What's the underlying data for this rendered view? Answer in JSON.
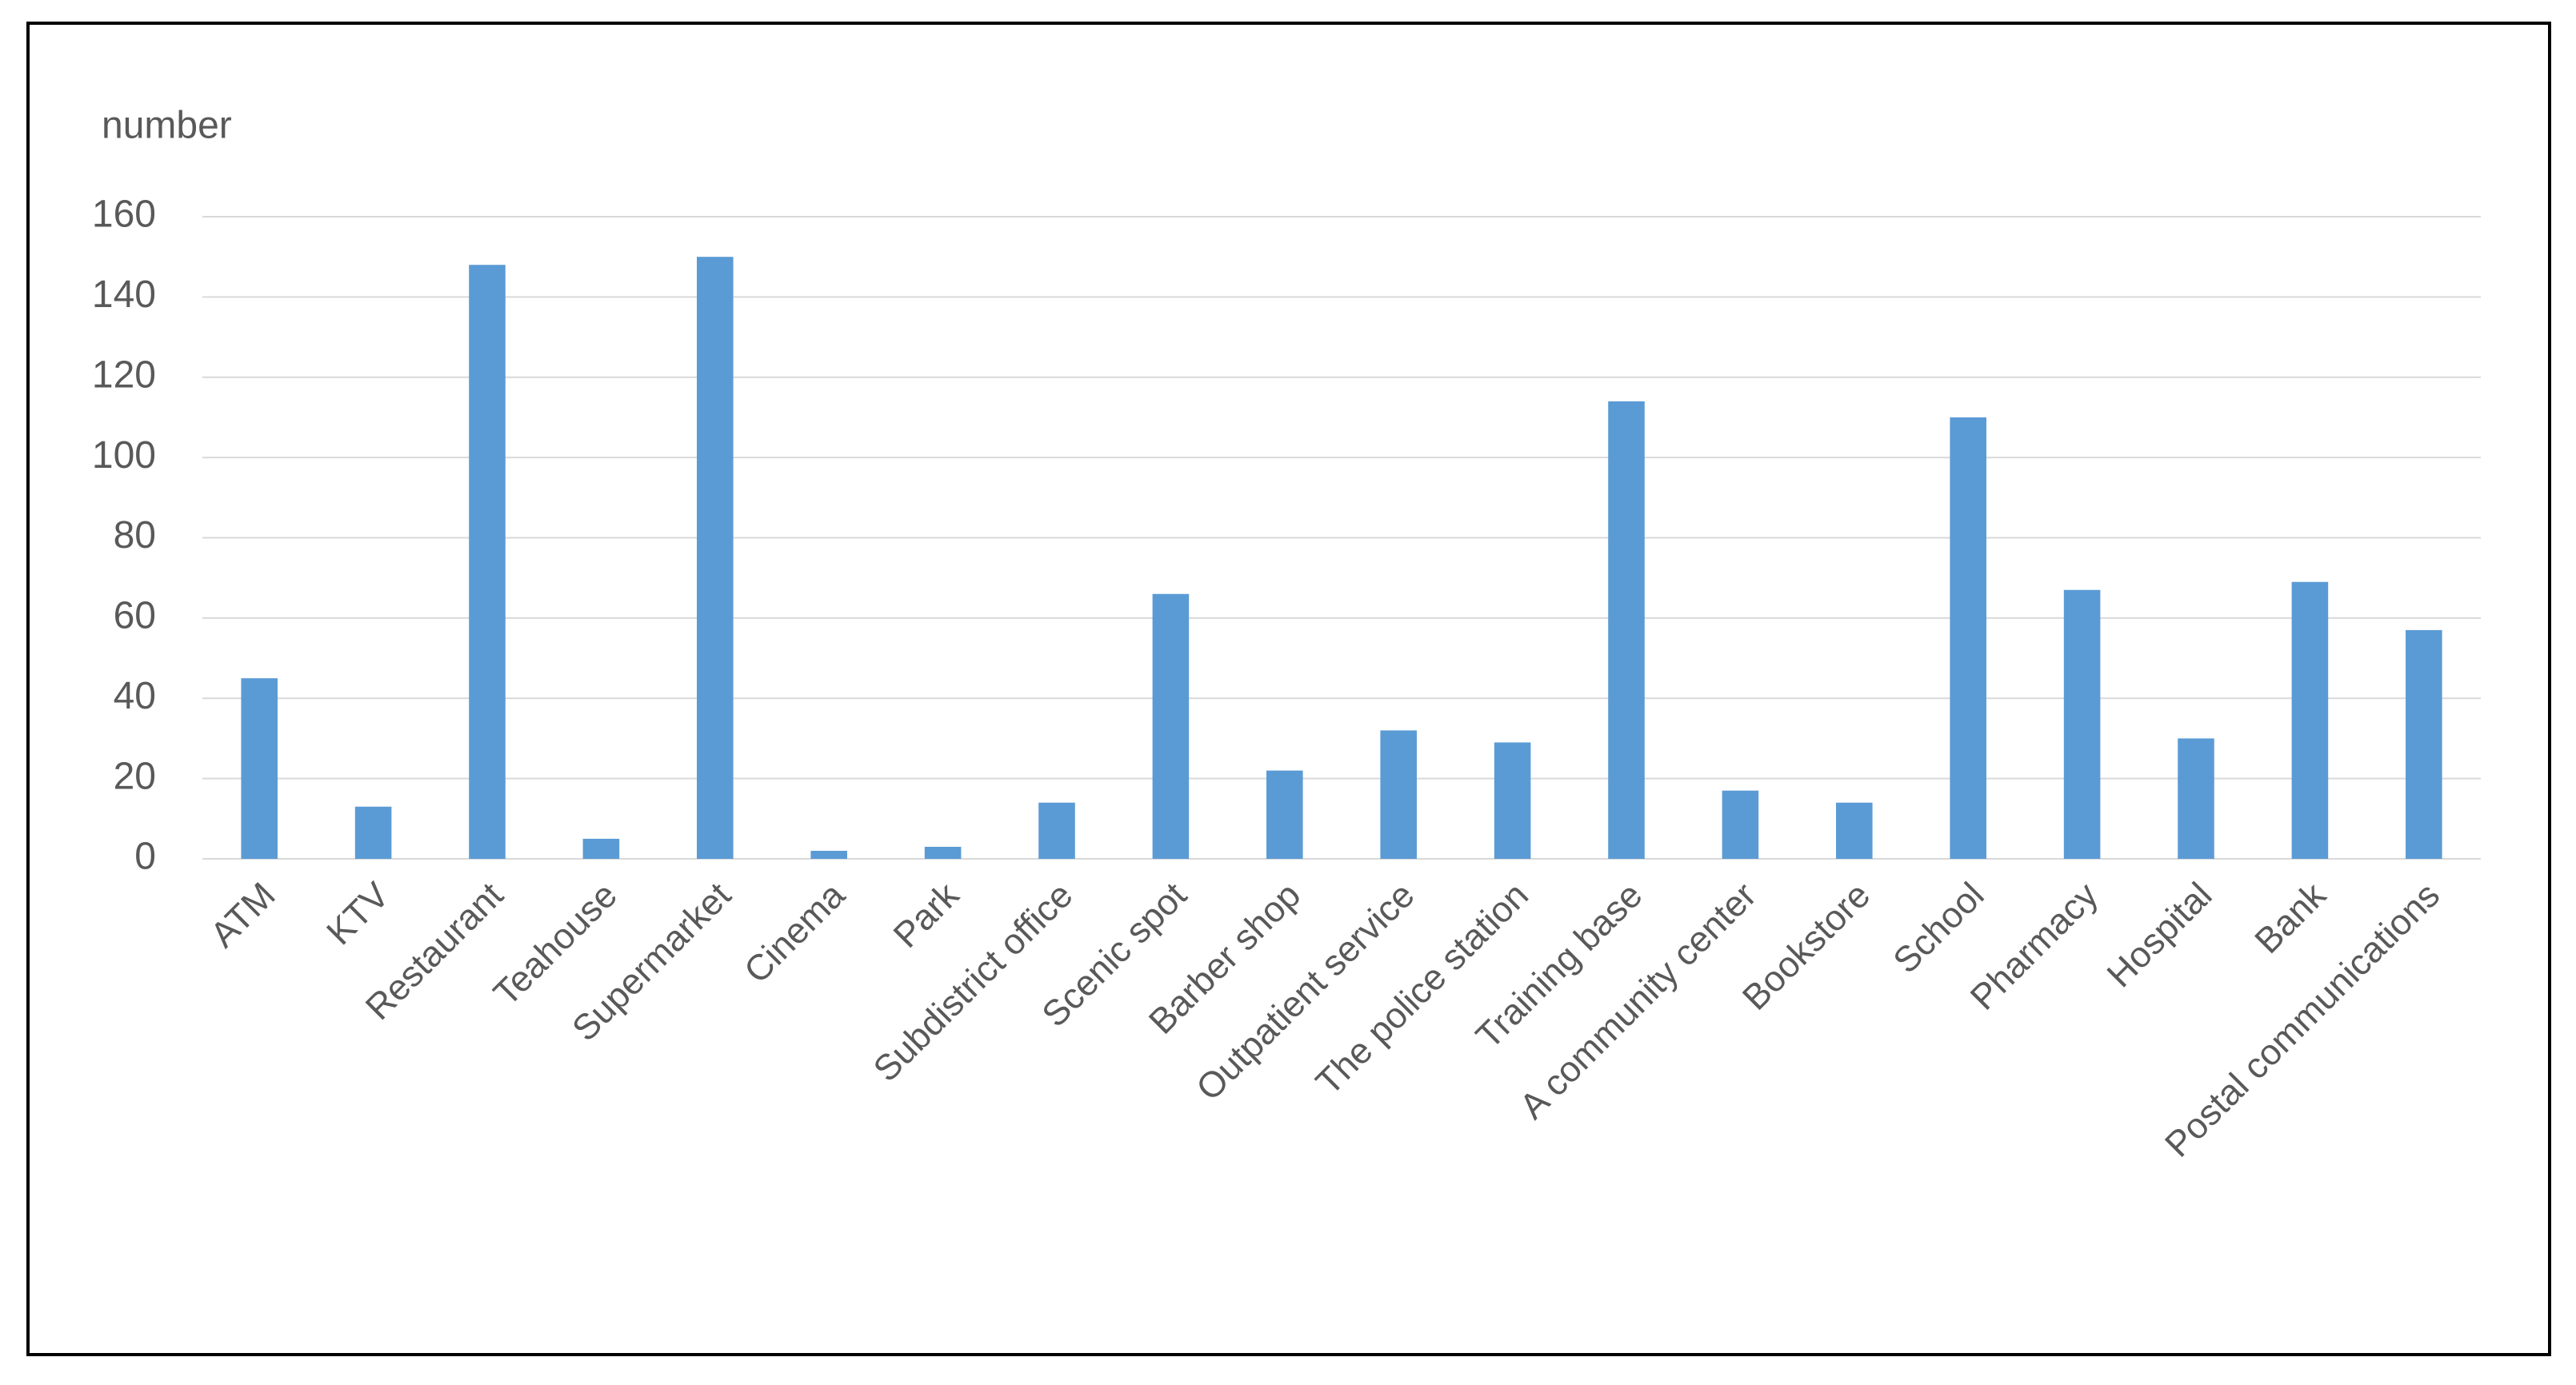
{
  "chart_data": {
    "type": "bar",
    "y_label": "number",
    "categories": [
      "ATM",
      "KTV",
      "Restaurant",
      "Teahouse",
      "Supermarket",
      "Cinema",
      "Park",
      "Subdistrict office",
      "Scenic spot",
      "Barber shop",
      "Outpatient service",
      "The police station",
      "Training base",
      "A community center",
      "Bookstore",
      "School",
      "Pharmacy",
      "Hospital",
      "Bank",
      "Postal communications"
    ],
    "values": [
      45,
      13,
      148,
      5,
      150,
      2,
      3,
      14,
      66,
      22,
      32,
      29,
      114,
      17,
      14,
      110,
      67,
      30,
      69,
      57
    ],
    "color": "#5b9bd5",
    "ylim": [
      0,
      160
    ],
    "yticks": [
      0,
      20,
      40,
      60,
      80,
      100,
      120,
      140,
      160
    ],
    "grid": true
  }
}
